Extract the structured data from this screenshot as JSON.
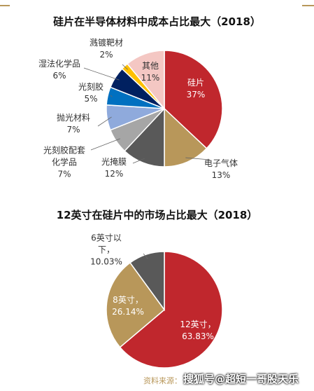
{
  "chart_data": [
    {
      "type": "pie",
      "title": "硅片在半导体材料中成本占比最大（2018）",
      "categories": [
        "硅片",
        "电子气体",
        "光掩膜",
        "光刻胶配套化学品",
        "抛光材料",
        "光刻胶",
        "湿法化学品",
        "溅镀靶材",
        "其他"
      ],
      "values": [
        37,
        13,
        12,
        7,
        7,
        5,
        6,
        2,
        11
      ],
      "value_labels": [
        "37%",
        "13%",
        "12%",
        "7%",
        "7%",
        "5%",
        "6%",
        "2%",
        "11%"
      ],
      "colors": [
        "#c0272d",
        "#b8975a",
        "#595959",
        "#a6a6a6",
        "#8faadc",
        "#0070c0",
        "#002060",
        "#ffc000",
        "#f4c7c3"
      ]
    },
    {
      "type": "pie",
      "title": "12英寸在硅片中的市场占比最大（2018）",
      "categories": [
        "12英寸，",
        "8英寸，",
        "6英寸以下，"
      ],
      "values": [
        63.83,
        26.14,
        10.03
      ],
      "value_labels": [
        "63.83%",
        "26.14%",
        "10.03%"
      ],
      "colors": [
        "#c0272d",
        "#b8975a",
        "#595959"
      ]
    }
  ],
  "source": "资料来源：",
  "watermark": "搜狐号@超短一哥股天乐"
}
